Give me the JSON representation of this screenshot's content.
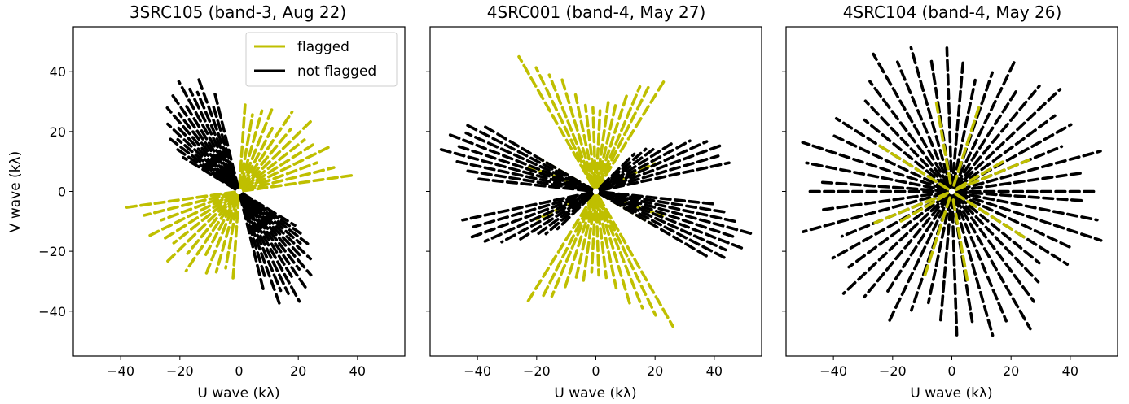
{
  "figure": {
    "legend": {
      "placement": "top-right of first panel",
      "entries": [
        {
          "label": "flagged",
          "color": "#bfbf00"
        },
        {
          "label": "not flagged",
          "color": "#000000"
        }
      ]
    }
  },
  "chart_data": [
    {
      "type": "scatter",
      "title": "3SRC105 (band-3, Aug 22)",
      "xlabel": "U wave (kλ)",
      "ylabel": "V wave (kλ)",
      "xlim": [
        -56,
        56
      ],
      "ylim": [
        -55,
        55
      ],
      "xticks": [
        -40,
        -20,
        0,
        20,
        40
      ],
      "yticks": [
        -40,
        -20,
        0,
        20,
        40
      ],
      "xtick_labels": [
        "−40",
        "−20",
        "0",
        "20",
        "40"
      ],
      "ytick_labels": [
        "−40",
        "−20",
        "0",
        "20",
        "40"
      ],
      "grid": false,
      "series": [
        {
          "name": "flagged",
          "color": "#bfbf00",
          "rays": [
            {
              "angle_deg": 8,
              "r_max": 39
            },
            {
              "angle_deg": 14,
              "r_max": 33
            },
            {
              "angle_deg": 20,
              "r_max": 28
            },
            {
              "angle_deg": 26,
              "r_max": 35
            },
            {
              "angle_deg": 32,
              "r_max": 31
            },
            {
              "angle_deg": 38,
              "r_max": 28
            },
            {
              "angle_deg": 44,
              "r_max": 34
            },
            {
              "angle_deg": 50,
              "r_max": 27
            },
            {
              "angle_deg": 56,
              "r_max": 32
            },
            {
              "angle_deg": 62,
              "r_max": 24
            },
            {
              "angle_deg": 68,
              "r_max": 30
            },
            {
              "angle_deg": 74,
              "r_max": 28
            },
            {
              "angle_deg": 80,
              "r_max": 26
            },
            {
              "angle_deg": 86,
              "r_max": 29
            }
          ]
        },
        {
          "name": "not flagged",
          "color": "#000000",
          "rays": [
            {
              "angle_deg": 104,
              "r_max": 34
            },
            {
              "angle_deg": 107,
              "r_max": 30
            },
            {
              "angle_deg": 110,
              "r_max": 41
            },
            {
              "angle_deg": 113,
              "r_max": 36
            },
            {
              "angle_deg": 116,
              "r_max": 38
            },
            {
              "angle_deg": 119,
              "r_max": 42
            },
            {
              "angle_deg": 122,
              "r_max": 35
            },
            {
              "angle_deg": 125,
              "r_max": 39
            },
            {
              "angle_deg": 128,
              "r_max": 33
            },
            {
              "angle_deg": 131,
              "r_max": 37
            },
            {
              "angle_deg": 134,
              "r_max": 30
            },
            {
              "angle_deg": 137,
              "r_max": 33
            },
            {
              "angle_deg": 140,
              "r_max": 27
            },
            {
              "angle_deg": 143,
              "r_max": 29
            },
            {
              "angle_deg": 146,
              "r_max": 25
            },
            {
              "angle_deg": 149,
              "r_max": 22
            }
          ]
        }
      ]
    },
    {
      "type": "scatter",
      "title": "4SRC001 (band-4, May 27)",
      "xlabel": "U wave (kλ)",
      "ylabel": "",
      "xlim": [
        -56,
        56
      ],
      "ylim": [
        -55,
        55
      ],
      "xticks": [
        -40,
        -20,
        0,
        20,
        40
      ],
      "yticks": [
        -40,
        -20,
        0,
        20,
        40
      ],
      "xtick_labels": [
        "−40",
        "−20",
        "0",
        "20",
        "40"
      ],
      "ytick_labels": [],
      "grid": false,
      "series": [
        {
          "name": "flagged",
          "color": "#bfbf00",
          "rays": [
            {
              "angle_deg": 58,
              "r_max": 44
            },
            {
              "angle_deg": 63,
              "r_max": 40
            },
            {
              "angle_deg": 67,
              "r_max": 38
            },
            {
              "angle_deg": 72,
              "r_max": 34
            },
            {
              "angle_deg": 77,
              "r_max": 30
            },
            {
              "angle_deg": 82,
              "r_max": 30
            },
            {
              "angle_deg": 87,
              "r_max": 27
            },
            {
              "angle_deg": 92,
              "r_max": 28
            },
            {
              "angle_deg": 97,
              "r_max": 29
            },
            {
              "angle_deg": 102,
              "r_max": 33
            },
            {
              "angle_deg": 107,
              "r_max": 39
            },
            {
              "angle_deg": 112,
              "r_max": 42
            },
            {
              "angle_deg": 116,
              "r_max": 46
            },
            {
              "angle_deg": 120,
              "r_max": 52
            },
            {
              "angle_deg": 160,
              "r_max": 24
            },
            {
              "angle_deg": 150,
              "r_max": 22
            },
            {
              "angle_deg": 25,
              "r_max": 22
            }
          ]
        },
        {
          "name": "not flagged",
          "color": "#000000",
          "rays": [
            {
              "angle_deg": 150,
              "r_max": 44
            },
            {
              "angle_deg": 153,
              "r_max": 50
            },
            {
              "angle_deg": 156,
              "r_max": 48
            },
            {
              "angle_deg": 159,
              "r_max": 54
            },
            {
              "angle_deg": 162,
              "r_max": 50
            },
            {
              "angle_deg": 165,
              "r_max": 55
            },
            {
              "angle_deg": 168,
              "r_max": 48
            },
            {
              "angle_deg": 171,
              "r_max": 44
            },
            {
              "angle_deg": 174,
              "r_max": 40
            },
            {
              "angle_deg": 12,
              "r_max": 46
            },
            {
              "angle_deg": 16,
              "r_max": 43
            },
            {
              "angle_deg": 20,
              "r_max": 45
            },
            {
              "angle_deg": 24,
              "r_max": 41
            },
            {
              "angle_deg": 28,
              "r_max": 36
            },
            {
              "angle_deg": 32,
              "r_max": 30
            },
            {
              "angle_deg": 36,
              "r_max": 25
            },
            {
              "angle_deg": 40,
              "r_max": 22
            },
            {
              "angle_deg": 44,
              "r_max": 18
            }
          ]
        }
      ]
    },
    {
      "type": "scatter",
      "title": "4SRC104 (band-4, May 26)",
      "xlabel": "U wave (kλ)",
      "ylabel": "",
      "xlim": [
        -56,
        56
      ],
      "ylim": [
        -55,
        55
      ],
      "xticks": [
        -40,
        -20,
        0,
        20,
        40
      ],
      "yticks": [
        -40,
        -20,
        0,
        20,
        40
      ],
      "xtick_labels": [
        "−40",
        "−20",
        "0",
        "20",
        "40"
      ],
      "ytick_labels": [],
      "grid": false,
      "series": [
        {
          "name": "not flagged",
          "color": "#000000",
          "rays": [
            {
              "angle_deg": 0,
              "r_max": 48
            },
            {
              "angle_deg": 8,
              "r_max": 44
            },
            {
              "angle_deg": 15,
              "r_max": 52
            },
            {
              "angle_deg": 22,
              "r_max": 40
            },
            {
              "angle_deg": 29,
              "r_max": 46
            },
            {
              "angle_deg": 36,
              "r_max": 43
            },
            {
              "angle_deg": 43,
              "r_max": 50
            },
            {
              "angle_deg": 50,
              "r_max": 46
            },
            {
              "angle_deg": 57,
              "r_max": 40
            },
            {
              "angle_deg": 64,
              "r_max": 48
            },
            {
              "angle_deg": 71,
              "r_max": 42
            },
            {
              "angle_deg": 78,
              "r_max": 38
            },
            {
              "angle_deg": 85,
              "r_max": 44
            },
            {
              "angle_deg": 92,
              "r_max": 48
            },
            {
              "angle_deg": 99,
              "r_max": 44
            },
            {
              "angle_deg": 106,
              "r_max": 50
            },
            {
              "angle_deg": 113,
              "r_max": 47
            },
            {
              "angle_deg": 120,
              "r_max": 53
            },
            {
              "angle_deg": 127,
              "r_max": 46
            },
            {
              "angle_deg": 134,
              "r_max": 42
            },
            {
              "angle_deg": 141,
              "r_max": 38
            },
            {
              "angle_deg": 148,
              "r_max": 46
            },
            {
              "angle_deg": 155,
              "r_max": 44
            },
            {
              "angle_deg": 162,
              "r_max": 53
            },
            {
              "angle_deg": 169,
              "r_max": 50
            },
            {
              "angle_deg": 176,
              "r_max": 45
            }
          ]
        },
        {
          "name": "flagged",
          "color": "#bfbf00",
          "rays": [
            {
              "angle_deg": 22,
              "r_max": 28
            },
            {
              "angle_deg": 72,
              "r_max": 30
            },
            {
              "angle_deg": 100,
              "r_max": 30
            },
            {
              "angle_deg": 148,
              "r_max": 30
            },
            {
              "angle_deg": 30,
              "r_max": 20
            }
          ]
        }
      ]
    }
  ]
}
